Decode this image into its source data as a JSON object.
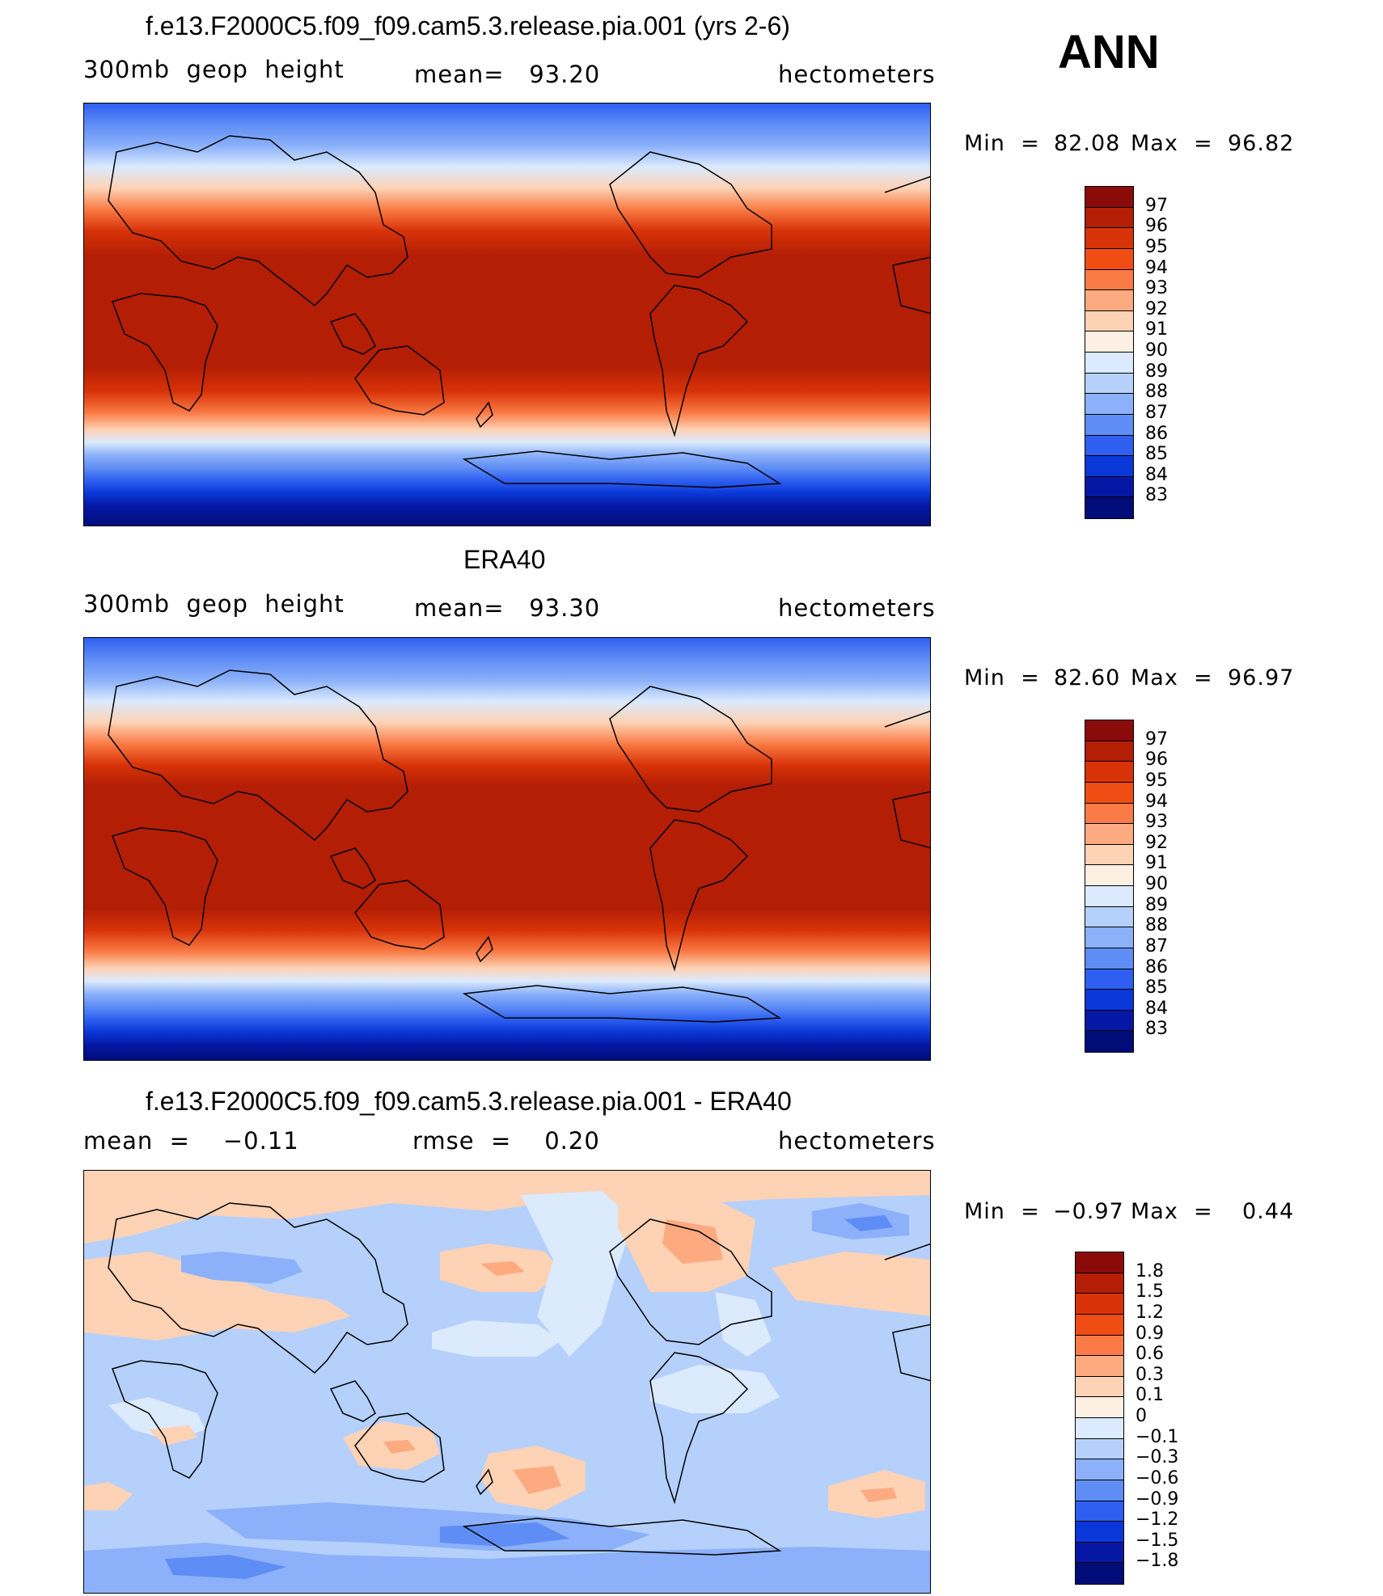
{
  "season": "ANN",
  "panels": [
    {
      "title": "f.e13.F2000C5.f09_f09.cam5.3.release.pia.001 (yrs 2-6)",
      "left_label": "300mb  geop  height",
      "center_label": "mean=   93.20",
      "units": "hectometers",
      "min_label": "Min  =",
      "min_value": "82.08",
      "max_label": "Max  =",
      "max_value": "96.82"
    },
    {
      "title": "ERA40",
      "left_label": "300mb  geop  height",
      "center_label": "mean=   93.30",
      "units": "hectometers",
      "min_label": "Min  =",
      "min_value": "82.60",
      "max_label": "Max  =",
      "max_value": "96.97"
    },
    {
      "title": "f.e13.F2000C5.f09_f09.cam5.3.release.pia.001 - ERA40",
      "left_label": "mean  =    −0.11",
      "center_label": "rmse  =    0.20",
      "units": "hectometers",
      "min_label": "Min  =",
      "min_value": "−0.97",
      "max_label": "Max  =",
      "max_value": "0.44"
    }
  ],
  "colorbar_abs": {
    "labels": [
      "97",
      "96",
      "95",
      "94",
      "93",
      "92",
      "91",
      "90",
      "89",
      "88",
      "87",
      "86",
      "85",
      "84",
      "83"
    ],
    "colors": [
      "#8b0a0a",
      "#b31e05",
      "#d83308",
      "#f04d15",
      "#fa7b45",
      "#fdaa80",
      "#fdd2b5",
      "#fdf0e2",
      "#dbeafd",
      "#b6d0fc",
      "#8cb1fa",
      "#5e8df5",
      "#2e5ff0",
      "#0a38d8",
      "#0518a5",
      "#000c78"
    ]
  },
  "colorbar_diff": {
    "labels": [
      "1.8",
      "1.5",
      "1.2",
      "0.9",
      "0.6",
      "0.3",
      "0.1",
      "0",
      "−0.1",
      "−0.3",
      "−0.6",
      "−0.9",
      "−1.2",
      "−1.5",
      "−1.8"
    ],
    "colors": [
      "#8b0a0a",
      "#b31e05",
      "#d83308",
      "#f04d15",
      "#fa7b45",
      "#fdaa80",
      "#fdd2b5",
      "#fdf0e2",
      "#dbeafd",
      "#b6d0fc",
      "#8cb1fa",
      "#5e8df5",
      "#2e5ff0",
      "#0a38d8",
      "#0518a5",
      "#000c78"
    ]
  }
}
